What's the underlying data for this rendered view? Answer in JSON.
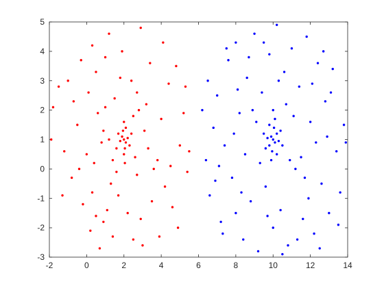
{
  "chart_data": {
    "type": "scatter",
    "xlim": [
      -2,
      14
    ],
    "ylim": [
      -3,
      5
    ],
    "xticks": [
      -2,
      0,
      2,
      4,
      6,
      8,
      10,
      12,
      14
    ],
    "yticks": [
      -3,
      -2,
      -1,
      0,
      1,
      2,
      3,
      4,
      5
    ],
    "series": [
      {
        "color": "#ff0000",
        "x": [
          2,
          2.1,
          1.9,
          2.05,
          1.95,
          2.2,
          1.8,
          2,
          2.1,
          1.7,
          2.3,
          2,
          1.6,
          2.4,
          2.05,
          -1.8,
          -1.5,
          -1.2,
          -1.9,
          -1.3,
          -0.8,
          -0.5,
          -0.3,
          0.1,
          0.3,
          0.5,
          0.2,
          0.7,
          0.9,
          0.4,
          0.6,
          -0.2,
          0.0,
          1.0,
          1.2,
          1.5,
          1.3,
          1.1,
          1.4,
          1.7,
          1.8,
          2.2,
          2.5,
          2.7,
          2.9,
          3.0,
          3.2,
          3.4,
          3.5,
          3.8,
          4.0,
          4.2,
          4.4,
          4.6,
          4.8,
          5.0,
          5.2,
          5.4,
          5.5,
          3.1,
          2.6,
          1.2,
          0.8,
          2.8,
          1.0,
          3.6,
          2.4,
          1.6,
          0.3,
          -0.7,
          4.9,
          4.1,
          2.9,
          0.5,
          -1.0,
          5.3,
          3.9,
          1.9,
          -0.4,
          2.5,
          1.4,
          3.3,
          0.9,
          2.7,
          4.5
        ],
        "y": [
          1,
          0.9,
          1.1,
          0.7,
          1.3,
          1.05,
          0.95,
          0.5,
          1.4,
          1.2,
          0.8,
          1.6,
          0.7,
          1.2,
          0.2,
          2.1,
          2.8,
          0.6,
          1.0,
          -0.9,
          -0.3,
          1.5,
          3.7,
          2.6,
          4.2,
          3.3,
          -2.1,
          -2.7,
          -1.8,
          0.2,
          1.9,
          -1.2,
          0.5,
          3.8,
          4.6,
          2.4,
          -0.5,
          -1.4,
          -2.3,
          -0.9,
          3.1,
          -1.5,
          -2.4,
          -0.2,
          4.8,
          -2.6,
          2.2,
          3.6,
          -1.1,
          0.3,
          1.7,
          -0.6,
          2.9,
          -1.3,
          3.5,
          0.8,
          1.9,
          -0.1,
          0.6,
          1.3,
          0.4,
          1.0,
          0.9,
          2.0,
          2.1,
          0.0,
          3.0,
          -0.1,
          -0.8,
          2.3,
          -2.0,
          4.3,
          -1.7,
          -1.6,
          3.0,
          2.8,
          -2.3,
          4.0,
          0.0,
          1.8,
          0.3,
          0.7,
          1.3,
          2.6,
          0.1
        ]
      },
      {
        "color": "#0000ff",
        "x": [
          10,
          10.1,
          9.9,
          10.2,
          9.8,
          10.05,
          9.95,
          10.3,
          9.7,
          10.1,
          9.9,
          10.4,
          9.6,
          10.2,
          9.8,
          10.5,
          9.5,
          10,
          6.2,
          6.4,
          6.6,
          6.8,
          6.5,
          7.0,
          7.2,
          7.4,
          7.6,
          7.8,
          8.0,
          8.2,
          8.4,
          8.6,
          8.8,
          9.0,
          9.2,
          9.4,
          9.6,
          9.8,
          10.0,
          10.2,
          10.4,
          10.6,
          10.8,
          11.0,
          11.2,
          11.4,
          11.6,
          11.8,
          12.0,
          12.2,
          12.4,
          12.6,
          12.8,
          13.0,
          13.2,
          13.4,
          13.6,
          13.8,
          13.9,
          7.1,
          7.9,
          8.5,
          8.9,
          11.1,
          11.5,
          12.3,
          12.9,
          8.3,
          11.7,
          9.3,
          10.7,
          9.1,
          10.9,
          8.7,
          11.3,
          12.7,
          7.3,
          6.9,
          13.1,
          9.7,
          10.3,
          8.1,
          11.9,
          12.5,
          7.5,
          9.5,
          10.5,
          13.5,
          8.0,
          12.1
        ],
        "y": [
          1,
          0.9,
          1.1,
          1.2,
          0.8,
          1.4,
          0.6,
          0.95,
          1.05,
          1.7,
          0.3,
          1.3,
          0.7,
          0.5,
          1.5,
          0.8,
          1.2,
          2,
          2.0,
          0.3,
          -0.9,
          1.4,
          3.0,
          2.5,
          -1.8,
          0.8,
          3.7,
          -0.3,
          4.3,
          1.9,
          -2.4,
          3.1,
          -1.1,
          4.6,
          -2.8,
          2.6,
          -0.6,
          3.9,
          -2.0,
          4.9,
          -1.4,
          3.3,
          -2.6,
          4.1,
          0.0,
          2.8,
          -1.7,
          4.5,
          1.6,
          -2.2,
          3.6,
          -0.5,
          2.3,
          -1.5,
          3.4,
          0.6,
          -0.8,
          1.5,
          0.9,
          0.1,
          1.2,
          0.5,
          2.0,
          1.8,
          0.4,
          0.9,
          1.1,
          -0.8,
          -0.3,
          0.2,
          2.2,
          1.6,
          0.3,
          3.8,
          -2.4,
          4.0,
          -2.2,
          -0.4,
          2.6,
          -1.6,
          3.0,
          2.7,
          -1.0,
          -2.7,
          4.1,
          4.3,
          -2.9,
          -1.9,
          -1.5,
          2.9
        ]
      }
    ]
  }
}
